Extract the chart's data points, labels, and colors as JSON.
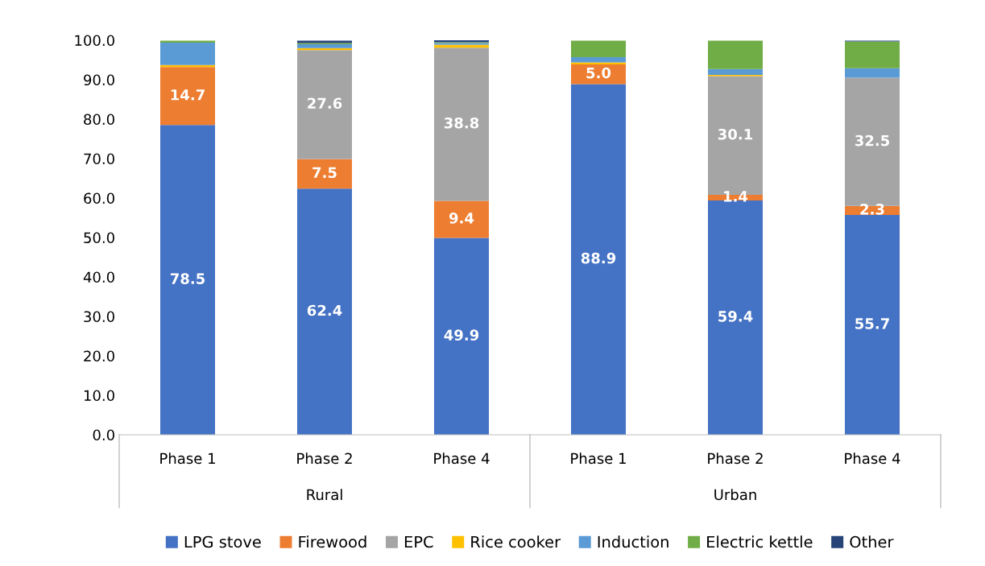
{
  "chart_data": {
    "type": "bar",
    "stacked": true,
    "categories": [
      "Phase 1",
      "Phase 2",
      "Phase 4",
      "Phase 1",
      "Phase 2",
      "Phase 4"
    ],
    "annotations": [
      "Rural",
      "Urban"
    ],
    "ylim": [
      0,
      100
    ],
    "yticks": [
      {
        "value": 0,
        "label": "0.0"
      },
      {
        "value": 10,
        "label": "10.0"
      },
      {
        "value": 20,
        "label": "20.0"
      },
      {
        "value": 30,
        "label": "30.0"
      },
      {
        "value": 40,
        "label": "40.0"
      },
      {
        "value": 50,
        "label": "50.0"
      },
      {
        "value": 60,
        "label": "60.0"
      },
      {
        "value": 70,
        "label": "70.0"
      },
      {
        "value": 80,
        "label": "80.0"
      },
      {
        "value": 90,
        "label": "90.0"
      },
      {
        "value": 100,
        "label": "100.0"
      }
    ],
    "grid": false,
    "legend": "bottom",
    "series": [
      {
        "name": "LPG stove",
        "color": "#4472c4",
        "values": [
          78.5,
          62.4,
          49.9,
          88.9,
          59.4,
          55.7
        ],
        "value_labels": [
          "78.5",
          "62.4",
          "49.9",
          "88.9",
          "59.4",
          "55.7"
        ]
      },
      {
        "name": "Firewood",
        "color": "#ed7d31",
        "values": [
          14.7,
          7.5,
          9.4,
          5.0,
          1.4,
          2.3
        ],
        "value_labels": [
          "14.7",
          "7.5",
          "9.4",
          "5.0",
          "1.4",
          "2.3"
        ]
      },
      {
        "name": "EPC",
        "color": "#a5a5a5",
        "values": [
          0,
          27.6,
          38.8,
          0,
          30.1,
          32.5
        ],
        "value_labels": [
          null,
          "27.6",
          "38.8",
          null,
          "30.1",
          "32.5"
        ]
      },
      {
        "name": "Rice cooker",
        "color": "#ffc000",
        "values": [
          0.5,
          0.5,
          0.8,
          0.5,
          0.3,
          0
        ]
      },
      {
        "name": "Induction",
        "color": "#5b9bd5",
        "values": [
          5.7,
          1.0,
          0.4,
          1.3,
          1.5,
          2.4
        ]
      },
      {
        "name": "Electric kettle",
        "color": "#70ad47",
        "values": [
          0.5,
          0.3,
          0.2,
          4.2,
          7.2,
          6.8
        ]
      },
      {
        "name": "Other",
        "color": "#264478",
        "values": [
          0,
          0.6,
          0.5,
          0,
          0,
          0.2
        ]
      }
    ]
  }
}
